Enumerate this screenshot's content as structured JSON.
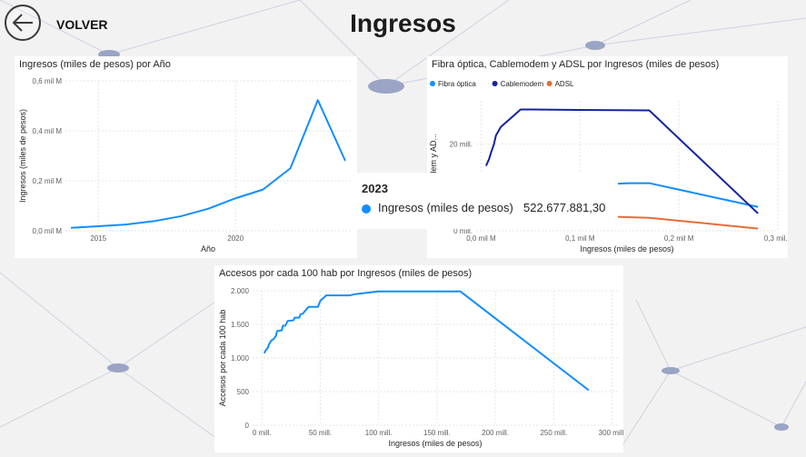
{
  "header": {
    "back_label": "VOLVER",
    "title": "Ingresos"
  },
  "colors": {
    "primary": "#118dff",
    "navy": "#12239e",
    "orange": "#e66c37",
    "grid": "#e6e6e6",
    "axis_text": "#605e5c"
  },
  "icons": {
    "back": "arrow-left-circle-icon",
    "legend_marker": "circle"
  },
  "tooltip": {
    "year": "2023",
    "series": "Ingresos (miles de pesos)",
    "value": "522.677.881,30"
  },
  "chart_data": [
    {
      "id": "ingresos_anio",
      "type": "line",
      "title": "Ingresos (miles de pesos) por Año",
      "xlabel": "Año",
      "ylabel": "Ingresos (miles de pesos)",
      "x": [
        2014,
        2015,
        2016,
        2017,
        2018,
        2019,
        2020,
        2021,
        2022,
        2023,
        2024
      ],
      "series": [
        {
          "values": [
            0.012,
            0.018,
            0.025,
            0.038,
            0.058,
            0.088,
            0.13,
            0.165,
            0.25,
            0.523,
            0.28
          ]
        }
      ],
      "xlim": [
        2013.8,
        2024.2
      ],
      "ylim": [
        0,
        0.6
      ],
      "yticks": [
        0,
        0.2,
        0.4,
        0.6
      ],
      "ytick_labels": [
        "0,0 mil M",
        "0,2 mil M",
        "0,4 mil M",
        "0,6 mil M"
      ],
      "xticks": [
        2015,
        2020
      ],
      "xtick_labels": [
        "2015",
        "2020"
      ],
      "grid": true
    },
    {
      "id": "fibra_cable_adsl",
      "type": "line",
      "title": "Fibra óptica, Cablemodem y ADSL por Ingresos (miles de pesos)",
      "xlabel": "Ingresos (miles de pesos)",
      "ylabel": "blemodem y AD...",
      "legend": "top-left",
      "series": [
        {
          "name": "Fibra óptica",
          "points": [
            [
              0.03,
              0.5
            ],
            [
              0.04,
              2.2
            ],
            [
              0.05,
              4.2
            ],
            [
              0.06,
              6.5
            ],
            [
              0.08,
              9.0
            ],
            [
              0.1,
              10.5
            ],
            [
              0.15,
              11.0
            ],
            [
              0.17,
              11.0
            ],
            [
              0.23,
              8.0
            ],
            [
              0.28,
              5.5
            ]
          ]
        },
        {
          "name": "Cablemodem",
          "points": [
            [
              0.005,
              15.0
            ],
            [
              0.008,
              16.5
            ],
            [
              0.01,
              18.0
            ],
            [
              0.013,
              20.0
            ],
            [
              0.015,
              22.0
            ],
            [
              0.02,
              24.0
            ],
            [
              0.03,
              26.0
            ],
            [
              0.035,
              27.0
            ],
            [
              0.04,
              28.0
            ],
            [
              0.05,
              28.0
            ],
            [
              0.1,
              27.9
            ],
            [
              0.17,
              27.8
            ],
            [
              0.28,
              4.0
            ]
          ]
        },
        {
          "name": "ADSL",
          "points": [
            [
              0.005,
              10.0
            ],
            [
              0.008,
              10.3
            ],
            [
              0.01,
              9.0
            ],
            [
              0.012,
              9.2
            ],
            [
              0.015,
              8.0
            ],
            [
              0.03,
              6.0
            ],
            [
              0.1,
              3.5
            ],
            [
              0.17,
              3.0
            ],
            [
              0.28,
              0.5
            ]
          ]
        }
      ],
      "xlim": [
        -0.005,
        0.3
      ],
      "ylim": [
        0,
        30
      ],
      "yticks": [
        0,
        20
      ],
      "ytick_labels": [
        "0 mill.",
        "20 mill."
      ],
      "xticks": [
        0,
        0.1,
        0.2,
        0.3
      ],
      "xtick_labels": [
        "0,0 mil M",
        "0,1 mil M",
        "0,2 mil M",
        "0,3 mil..."
      ],
      "legend_entries": [
        "Fibra óptica",
        "Cablemodem",
        "ADSL"
      ],
      "grid": true
    },
    {
      "id": "accesos_100hab",
      "type": "line",
      "title": "Accesos por cada 100 hab por Ingresos (miles de pesos)",
      "xlabel": "Ingresos (miles de pesos)",
      "ylabel": "Accesos por cada 100 hab",
      "series": [
        {
          "points": [
            [
              2,
              1070
            ],
            [
              3,
              1110
            ],
            [
              5,
              1150
            ],
            [
              6,
              1200
            ],
            [
              8,
              1260
            ],
            [
              10,
              1280
            ],
            [
              12,
              1330
            ],
            [
              13,
              1400
            ],
            [
              17,
              1410
            ],
            [
              18,
              1480
            ],
            [
              20,
              1480
            ],
            [
              22,
              1550
            ],
            [
              27,
              1560
            ],
            [
              28,
              1600
            ],
            [
              32,
              1600
            ],
            [
              33,
              1650
            ],
            [
              35,
              1660
            ],
            [
              37,
              1700
            ],
            [
              40,
              1760
            ],
            [
              48,
              1760
            ],
            [
              50,
              1850
            ],
            [
              55,
              1930
            ],
            [
              75,
              1930
            ],
            [
              80,
              1950
            ],
            [
              100,
              1990
            ],
            [
              170,
              1990
            ],
            [
              280,
              520
            ]
          ]
        }
      ],
      "xlim": [
        -8,
        305
      ],
      "ylim": [
        0,
        2000
      ],
      "yticks": [
        0,
        500,
        1000,
        1500,
        2000
      ],
      "ytick_labels": [
        "0",
        "500",
        "1.000",
        "1.500",
        "2.000"
      ],
      "xticks": [
        0,
        50,
        100,
        150,
        200,
        250,
        300
      ],
      "xtick_labels": [
        "0 mill.",
        "50 mill.",
        "100 mill.",
        "150 mill.",
        "200 mill.",
        "250 mill.",
        "300 mill."
      ],
      "grid": true
    }
  ]
}
